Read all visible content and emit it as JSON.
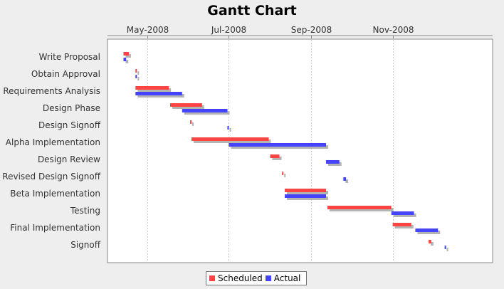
{
  "chart_data": {
    "type": "gantt",
    "title": "Gantt Chart",
    "date_axis": {
      "range": [
        "2008-04-01",
        "2009-01-15"
      ],
      "tick_labels": [
        "May-2008",
        "Jul-2008",
        "Sep-2008",
        "Nov-2008"
      ],
      "tick_dates": [
        "2008-05-01",
        "2008-07-01",
        "2008-09-01",
        "2008-11-01"
      ]
    },
    "legend_position": "bottom",
    "series": [
      {
        "name": "Scheduled",
        "color": "#ff4444"
      },
      {
        "name": "Actual",
        "color": "#4444ff"
      }
    ],
    "tasks": [
      {
        "label": "Write Proposal",
        "scheduled": [
          "2008-04-13",
          "2008-04-17"
        ],
        "actual": [
          "2008-04-13",
          "2008-04-15"
        ]
      },
      {
        "label": "Obtain Approval",
        "scheduled": [
          "2008-04-22",
          "2008-04-23"
        ],
        "actual": [
          "2008-04-22",
          "2008-04-23"
        ]
      },
      {
        "label": "Requirements Analysis",
        "scheduled": [
          "2008-04-22",
          "2008-05-17"
        ],
        "actual": [
          "2008-04-22",
          "2008-05-27"
        ]
      },
      {
        "label": "Design Phase",
        "scheduled": [
          "2008-05-18",
          "2008-06-11"
        ],
        "actual": [
          "2008-05-27",
          "2008-06-30"
        ]
      },
      {
        "label": "Design Signoff",
        "scheduled": [
          "2008-06-02",
          "2008-06-03"
        ],
        "actual": [
          "2008-06-30",
          "2008-07-01"
        ]
      },
      {
        "label": "Alpha Implementation",
        "scheduled": [
          "2008-06-03",
          "2008-07-31"
        ],
        "actual": [
          "2008-07-01",
          "2008-09-12"
        ]
      },
      {
        "label": "Design Review",
        "scheduled": [
          "2008-08-01",
          "2008-08-08"
        ],
        "actual": [
          "2008-09-12",
          "2008-09-22"
        ]
      },
      {
        "label": "Revised Design Signoff",
        "scheduled": [
          "2008-08-10",
          "2008-08-11"
        ],
        "actual": [
          "2008-09-25",
          "2008-09-27"
        ]
      },
      {
        "label": "Beta Implementation",
        "scheduled": [
          "2008-08-12",
          "2008-09-12"
        ],
        "actual": [
          "2008-08-12",
          "2008-09-12"
        ]
      },
      {
        "label": "Testing",
        "scheduled": [
          "2008-09-13",
          "2008-10-31"
        ],
        "actual": [
          "2008-10-31",
          "2008-11-17"
        ]
      },
      {
        "label": "Final Implementation",
        "scheduled": [
          "2008-11-01",
          "2008-11-15"
        ],
        "actual": [
          "2008-11-18",
          "2008-12-05"
        ]
      },
      {
        "label": "Signoff",
        "scheduled": [
          "2008-11-28",
          "2008-11-30"
        ],
        "actual": [
          "2008-12-10",
          "2008-12-11"
        ]
      }
    ]
  }
}
